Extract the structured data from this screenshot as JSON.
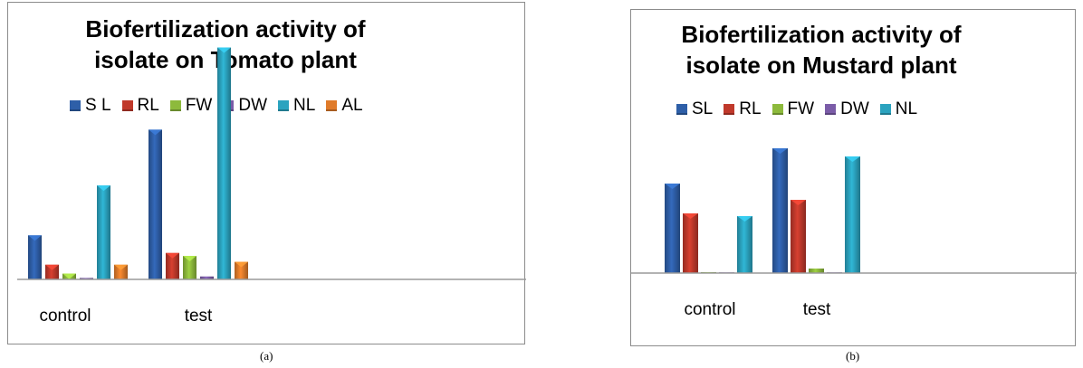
{
  "colors": {
    "SL": "#2e5fa8",
    "RL": "#c0392b",
    "FW": "#8dba3c",
    "DW": "#7b5ca8",
    "NL": "#2ba3bf",
    "AL": "#e07b2a"
  },
  "chart_data": [
    {
      "type": "bar",
      "title_lines": [
        "Biofertilization activity of",
        "isolate on Tomato plant"
      ],
      "categories": [
        "control",
        "test"
      ],
      "series": [
        {
          "name": "S L",
          "key": "SL",
          "values": [
            30,
            102
          ]
        },
        {
          "name": "RL",
          "key": "RL",
          "values": [
            10,
            18
          ]
        },
        {
          "name": "FW",
          "key": "FW",
          "values": [
            4,
            16
          ]
        },
        {
          "name": "DW",
          "key": "DW",
          "values": [
            1,
            2
          ]
        },
        {
          "name": "NL",
          "key": "NL",
          "values": [
            64,
            158
          ]
        },
        {
          "name": "AL",
          "key": "AL",
          "values": [
            10,
            12
          ]
        }
      ],
      "ylim": [
        0,
        170
      ],
      "legend": "top",
      "grid": false,
      "caption": "(a)"
    },
    {
      "type": "bar",
      "title_lines": [
        "Biofertilization activity of",
        "isolate on Mustard plant"
      ],
      "categories": [
        "control",
        "test"
      ],
      "series": [
        {
          "name": "SL",
          "key": "SL",
          "values": [
            99,
            138
          ]
        },
        {
          "name": "RL",
          "key": "RL",
          "values": [
            66,
            81
          ]
        },
        {
          "name": "FW",
          "key": "FW",
          "values": [
            0.5,
            5
          ]
        },
        {
          "name": "DW",
          "key": "DW",
          "values": [
            0,
            0
          ]
        },
        {
          "name": "NL",
          "key": "NL",
          "values": [
            63,
            129
          ]
        }
      ],
      "ylim": [
        0,
        150
      ],
      "legend": "top",
      "grid": false,
      "caption": "(b)"
    }
  ]
}
